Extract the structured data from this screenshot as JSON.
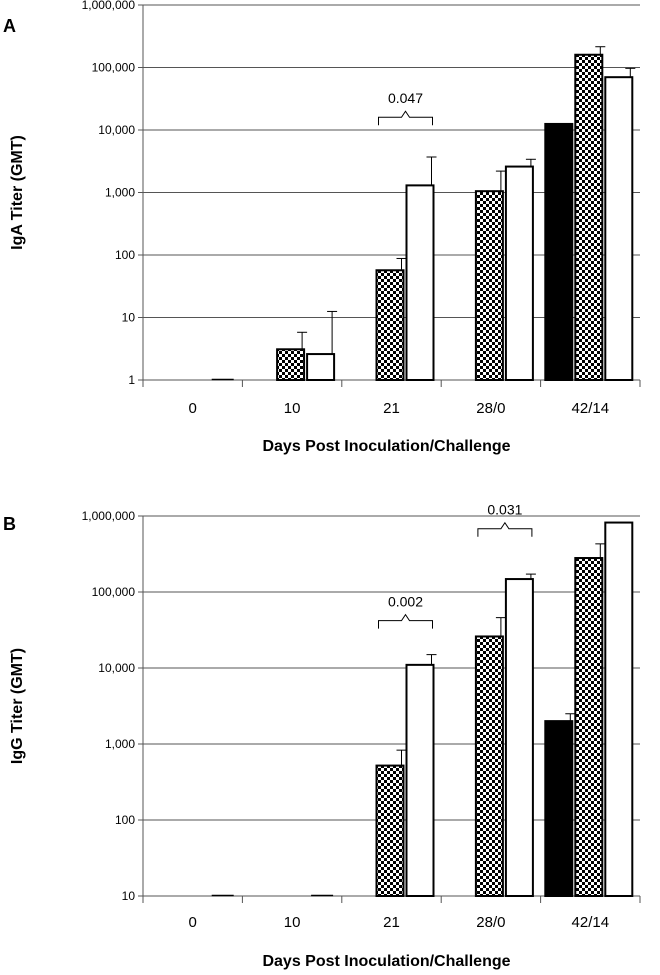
{
  "chart_data": [
    {
      "type": "bar",
      "panel_label": "A",
      "scale": "log",
      "ylim": [
        1,
        1000000
      ],
      "yticks": [
        {
          "value": 1,
          "label": "1"
        },
        {
          "value": 10,
          "label": "10"
        },
        {
          "value": 100,
          "label": "100"
        },
        {
          "value": 1000,
          "label": "1,000"
        },
        {
          "value": 10000,
          "label": "10,000"
        },
        {
          "value": 100000,
          "label": "100,000"
        },
        {
          "value": 1000000,
          "label": "1,000,000"
        }
      ],
      "ylabel": "IgA Titer (GMT)",
      "xlabel": "Days Post Inoculation/Challenge",
      "categories": [
        "0",
        "10",
        "21",
        "28/0",
        "42/14"
      ],
      "grid": true,
      "series": [
        {
          "pattern": "solid",
          "values": [
            null,
            null,
            null,
            null,
            12500
          ],
          "errors": [
            null,
            null,
            null,
            null,
            null
          ]
        },
        {
          "pattern": "checkered",
          "values": [
            null,
            3.1,
            57,
            1050,
            160000
          ],
          "errors": [
            null,
            5.8,
            88,
            2200,
            215000
          ]
        },
        {
          "pattern": "open",
          "values": [
            1,
            2.6,
            1300,
            2600,
            70000
          ],
          "errors": [
            null,
            12.5,
            3700,
            3400,
            97000
          ]
        }
      ],
      "annotations": [
        {
          "text": "0.047",
          "category": "21",
          "series": [
            1,
            2
          ],
          "bracket_value": 16000
        }
      ]
    },
    {
      "type": "bar",
      "panel_label": "B",
      "scale": "log",
      "ylim": [
        10,
        1000000
      ],
      "yticks": [
        {
          "value": 10,
          "label": "10"
        },
        {
          "value": 100,
          "label": "100"
        },
        {
          "value": 1000,
          "label": "1,000"
        },
        {
          "value": 10000,
          "label": "10,000"
        },
        {
          "value": 100000,
          "label": "100,000"
        },
        {
          "value": 1000000,
          "label": "1,000,000"
        }
      ],
      "ylabel": "IgG Titer (GMT)",
      "xlabel": "Days Post Inoculation/Challenge",
      "categories": [
        "0",
        "10",
        "21",
        "28/0",
        "42/14"
      ],
      "grid": true,
      "series": [
        {
          "pattern": "solid",
          "values": [
            null,
            null,
            null,
            null,
            2000
          ],
          "errors": [
            null,
            null,
            null,
            null,
            2500
          ]
        },
        {
          "pattern": "checkered",
          "values": [
            null,
            null,
            520,
            26000,
            280000
          ],
          "errors": [
            null,
            null,
            830,
            46000,
            430000
          ]
        },
        {
          "pattern": "open",
          "values": [
            10,
            10,
            11000,
            148000,
            820000
          ],
          "errors": [
            null,
            null,
            15000,
            172000,
            null
          ]
        }
      ],
      "annotations": [
        {
          "text": "0.002",
          "category": "21",
          "series": [
            1,
            2
          ],
          "bracket_value": 42000
        },
        {
          "text": "0.031",
          "category": "28/0",
          "series": [
            1,
            2
          ],
          "bracket_value": 680000
        }
      ]
    }
  ]
}
